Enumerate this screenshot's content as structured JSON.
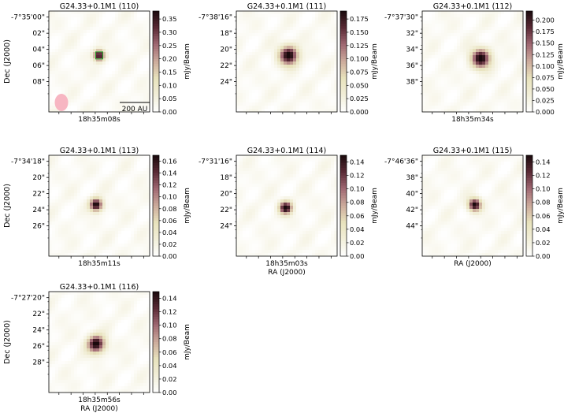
{
  "figure": {
    "colorbar_label": "mJy/Beam",
    "colormap_stops": [
      "#ffffff",
      "#f2efd9",
      "#e8e2bc",
      "#ccab9c",
      "#a06873",
      "#5a2a35",
      "#1a0a0d"
    ],
    "contour_color": "#2ca02c",
    "beam_color": "#f7b6c2",
    "scalebar_label": "200 AU"
  },
  "chart_data": [
    {
      "type": "heatmap",
      "title": "G24.33+0.1M1 (110)",
      "ylabel": "Dec (J2000)",
      "xlabel": "",
      "yticks": [
        "-7°35'00\"",
        "02\"",
        "04\"",
        "06\"",
        "08\""
      ],
      "xtick": "18h35m08s",
      "source": {
        "x": 0.5,
        "y": 0.44,
        "peak": 0.36,
        "spread": 0.07,
        "contour": true
      },
      "colorbar": {
        "min": 0.0,
        "max": 0.38,
        "ticks": [
          "0.00",
          "0.05",
          "0.10",
          "0.15",
          "0.20",
          "0.25",
          "0.30",
          "0.35"
        ]
      },
      "beam": true,
      "scalebar": true
    },
    {
      "type": "heatmap",
      "title": "G24.33+0.1M1 (111)",
      "ylabel": "",
      "xlabel": "",
      "yticks": [
        "-7°38'16\"",
        "18\"",
        "20\"",
        "22\"",
        "24\""
      ],
      "xtick": "",
      "source": {
        "x": 0.52,
        "y": 0.44,
        "peak": 0.19,
        "spread": 0.12
      },
      "colorbar": {
        "min": 0.0,
        "max": 0.19,
        "ticks": [
          "0.000",
          "0.025",
          "0.050",
          "0.075",
          "0.100",
          "0.125",
          "0.150",
          "0.175"
        ]
      }
    },
    {
      "type": "heatmap",
      "title": "G24.33+0.1M1 (112)",
      "ylabel": "",
      "xlabel": "",
      "yticks": [
        "-7°37'30\"",
        "32\"",
        "34\"",
        "36\"",
        "38\""
      ],
      "xtick": "18h35m34s",
      "source": {
        "x": 0.58,
        "y": 0.47,
        "peak": 0.22,
        "spread": 0.12
      },
      "colorbar": {
        "min": 0.0,
        "max": 0.22,
        "ticks": [
          "0.000",
          "0.025",
          "0.050",
          "0.075",
          "0.100",
          "0.125",
          "0.150",
          "0.175",
          "0.200"
        ]
      }
    },
    {
      "type": "heatmap",
      "title": "G24.33+0.1M1 (113)",
      "ylabel": "Dec (J2000)",
      "xlabel": "",
      "yticks": [
        "-7°34'18\"",
        "20\"",
        "22\"",
        "24\"",
        "26\""
      ],
      "xtick": "18h35m11s",
      "source": {
        "x": 0.47,
        "y": 0.49,
        "peak": 0.17,
        "spread": 0.08
      },
      "colorbar": {
        "min": 0.0,
        "max": 0.17,
        "ticks": [
          "0.00",
          "0.02",
          "0.04",
          "0.06",
          "0.08",
          "0.10",
          "0.12",
          "0.14",
          "0.16"
        ]
      }
    },
    {
      "type": "heatmap",
      "title": "G24.33+0.1M1 (114)",
      "ylabel": "",
      "xlabel": "RA (J2000)",
      "yticks": [
        "-7°31'16\"",
        "18\"",
        "20\"",
        "22\"",
        "24\""
      ],
      "xtick": "18h35m03s",
      "source": {
        "x": 0.49,
        "y": 0.52,
        "peak": 0.15,
        "spread": 0.08
      },
      "colorbar": {
        "min": 0.0,
        "max": 0.15,
        "ticks": [
          "0.00",
          "0.02",
          "0.04",
          "0.06",
          "0.08",
          "0.10",
          "0.12",
          "0.14"
        ]
      }
    },
    {
      "type": "heatmap",
      "title": "G24.33+0.1M1 (115)",
      "ylabel": "",
      "xlabel": "RA (J2000)",
      "yticks": [
        "-7°46'36\"",
        "38\"",
        "40\"",
        "42\"",
        "44\""
      ],
      "xtick": "",
      "source": {
        "x": 0.52,
        "y": 0.49,
        "peak": 0.15,
        "spread": 0.08
      },
      "colorbar": {
        "min": 0.0,
        "max": 0.15,
        "ticks": [
          "0.00",
          "0.02",
          "0.04",
          "0.06",
          "0.08",
          "0.10",
          "0.12",
          "0.14"
        ]
      }
    },
    {
      "type": "heatmap",
      "title": "G24.33+0.1M1 (116)",
      "ylabel": "Dec (J2000)",
      "xlabel": "RA (J2000)",
      "yticks": [
        "-7°27'20\"",
        "22\"",
        "24\"",
        "26\"",
        "28\""
      ],
      "xtick": "18h35m56s",
      "source": {
        "x": 0.47,
        "y": 0.52,
        "peak": 0.15,
        "spread": 0.11
      },
      "colorbar": {
        "min": 0.0,
        "max": 0.15,
        "ticks": [
          "0.00",
          "0.02",
          "0.04",
          "0.06",
          "0.08",
          "0.10",
          "0.12",
          "0.14"
        ]
      }
    }
  ]
}
